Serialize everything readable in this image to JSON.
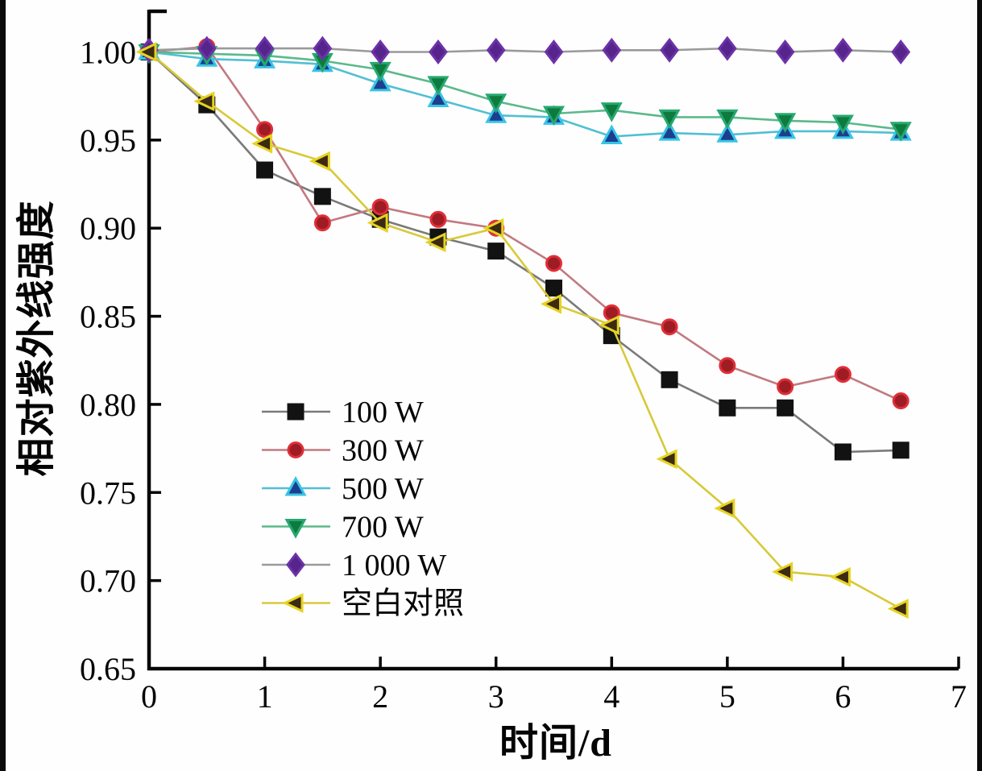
{
  "figure": {
    "xlabel": "时间/d",
    "ylabel": "相对紫外线强度"
  },
  "chart_data": {
    "type": "line",
    "title": "",
    "xlabel": "时间/d",
    "ylabel": "相对紫外线强度",
    "xlim": [
      0,
      7
    ],
    "ylim": [
      0.65,
      1.024
    ],
    "xticks": [
      0,
      1,
      2,
      3,
      4,
      5,
      6,
      7
    ],
    "yticks": [
      0.65,
      0.7,
      0.75,
      0.8,
      0.85,
      0.9,
      0.95,
      1.0
    ],
    "grid": false,
    "legend_position": "inside-center-left",
    "x": [
      0,
      0.5,
      1,
      1.5,
      2,
      2.5,
      3,
      3.5,
      4,
      4.5,
      5,
      5.5,
      6,
      6.5
    ],
    "series": [
      {
        "name": "100 W",
        "marker": "square",
        "fill": "#121212",
        "edge": "#121212",
        "line_color": "#7a7a7a",
        "values": [
          1.0,
          0.97,
          0.933,
          0.918,
          0.905,
          0.895,
          0.887,
          0.866,
          0.839,
          0.814,
          0.798,
          0.798,
          0.773,
          0.774
        ]
      },
      {
        "name": "300 W",
        "marker": "circle",
        "fill": "#9e1c24",
        "edge": "#e02f38",
        "line_color": "#c17a80",
        "values": [
          1.0,
          1.003,
          0.956,
          0.903,
          0.912,
          0.905,
          0.9,
          0.88,
          0.852,
          0.844,
          0.822,
          0.81,
          0.817,
          0.802
        ]
      },
      {
        "name": "500 W",
        "marker": "triangle-up",
        "fill": "#1c3e8e",
        "edge": "#38c4e6",
        "line_color": "#52bfd3",
        "values": [
          1.0,
          0.996,
          0.995,
          0.993,
          0.982,
          0.973,
          0.964,
          0.963,
          0.952,
          0.954,
          0.953,
          0.955,
          0.955,
          0.954
        ]
      },
      {
        "name": "700 W",
        "marker": "triangle-down",
        "fill": "#0e7a3e",
        "edge": "#27a870",
        "line_color": "#5bb98b",
        "values": [
          1.0,
          0.999,
          0.998,
          0.995,
          0.99,
          0.982,
          0.972,
          0.965,
          0.967,
          0.963,
          0.963,
          0.961,
          0.96,
          0.956
        ]
      },
      {
        "name": "1 000 W",
        "marker": "diamond",
        "fill": "#55258b",
        "edge": "#6d32a8",
        "line_color": "#9a9a9a",
        "values": [
          1.001,
          1.002,
          1.002,
          1.002,
          1.0,
          1.0,
          1.001,
          1.0,
          1.001,
          1.001,
          1.002,
          1.0,
          1.001,
          1.0
        ]
      },
      {
        "name": "空白对照",
        "marker": "triangle-left",
        "fill": "#3c2a12",
        "edge": "#e6d322",
        "line_color": "#d8c93a",
        "values": [
          1.0,
          0.972,
          0.948,
          0.938,
          0.903,
          0.892,
          0.9,
          0.857,
          0.845,
          0.769,
          0.741,
          0.705,
          0.702,
          0.684
        ]
      }
    ]
  }
}
